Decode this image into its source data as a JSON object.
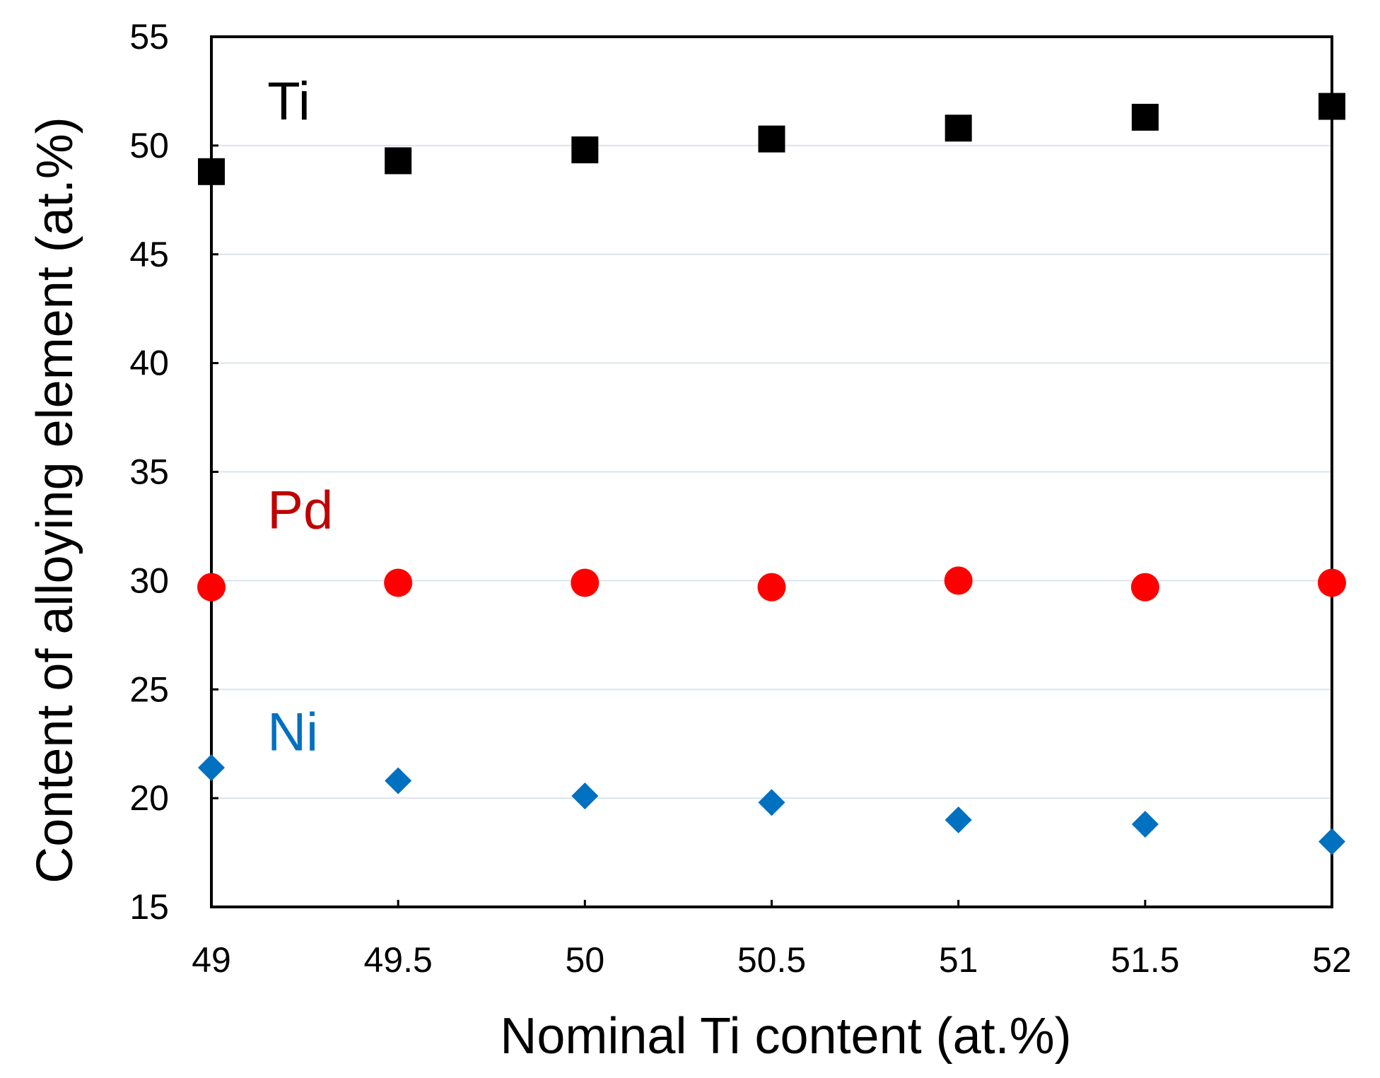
{
  "chart_data": {
    "type": "scatter",
    "xlabel": "Nominal Ti content (at.%)",
    "ylabel": "Content of alloying element (at.%)",
    "xlim": [
      49,
      52
    ],
    "ylim": [
      15,
      55
    ],
    "xticks": [
      "49",
      "49.5",
      "50",
      "50.5",
      "51",
      "51.5",
      "52"
    ],
    "yticks": [
      "15",
      "20",
      "25",
      "30",
      "35",
      "40",
      "45",
      "50",
      "55"
    ],
    "grid": "horizontal",
    "x": [
      49,
      49.5,
      50,
      50.5,
      51,
      51.5,
      52
    ],
    "series": [
      {
        "name": "Ti",
        "marker": "square",
        "color": "#000000",
        "label_at": [
          49.15,
          51.2
        ],
        "values": [
          48.8,
          49.3,
          49.8,
          50.3,
          50.8,
          51.3,
          51.8
        ]
      },
      {
        "name": "Pd",
        "marker": "circle",
        "color": "#ff0000",
        "label_color": "#c00000",
        "label_at": [
          49.15,
          32.4
        ],
        "values": [
          29.7,
          29.9,
          29.9,
          29.7,
          30.0,
          29.7,
          29.9
        ]
      },
      {
        "name": "Ni",
        "marker": "diamond",
        "color": "#0070c0",
        "label_at": [
          49.15,
          22.2
        ],
        "values": [
          21.4,
          20.8,
          20.1,
          19.8,
          19.0,
          18.8,
          18.0
        ]
      }
    ]
  }
}
